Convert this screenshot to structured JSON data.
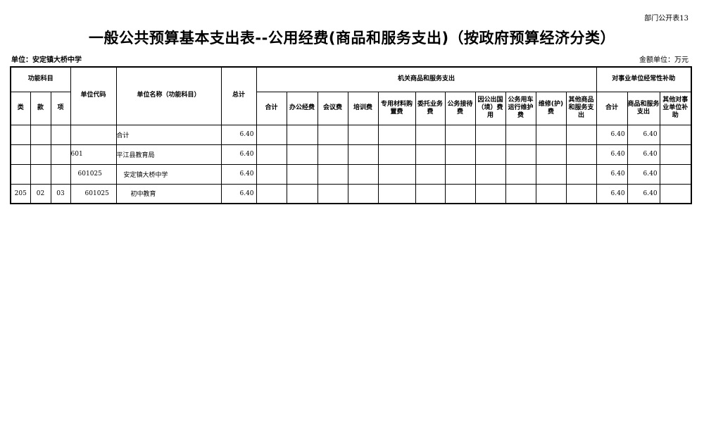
{
  "corner_label": "部门公开表13",
  "title": "一般公共预算基本支出表--公用经费(商品和服务支出)（按政府预算经济分类）",
  "unit_label": "单位：安定镇大桥中学",
  "money_unit": "金额单位：万元",
  "headers": {
    "func": "功能科目",
    "lei": "类",
    "kuan": "款",
    "xiang": "项",
    "code": "单位代码",
    "name": "单位名称（功能科目）",
    "total": "总计",
    "jiguan": "机关商品和服务支出",
    "shiye": "对事业单位经常性补助",
    "jiguan_cols": [
      "合计",
      "办公经费",
      "会议费",
      "培训费",
      "专用材料购置费",
      "委托业务费",
      "公务接待费",
      "因公出国（境）费用",
      "公务用车运行维护费",
      "维修(护)费",
      "其他商品和服务支出"
    ],
    "shiye_cols": [
      "合计",
      "商品和服务支出",
      "其他对事业单位补助"
    ]
  },
  "rows": [
    {
      "lei": "",
      "kuan": "",
      "xiang": "",
      "code": "",
      "name": "合计",
      "total": "6.40",
      "jiguan": [
        "",
        "",
        "",
        "",
        "",
        "",
        "",
        "",
        "",
        "",
        ""
      ],
      "shiye": [
        "6.40",
        "6.40",
        ""
      ]
    },
    {
      "lei": "",
      "kuan": "",
      "xiang": "",
      "code": "601",
      "name": "平江县教育局",
      "total": "6.40",
      "jiguan": [
        "",
        "",
        "",
        "",
        "",
        "",
        "",
        "",
        "",
        "",
        ""
      ],
      "shiye": [
        "6.40",
        "6.40",
        ""
      ]
    },
    {
      "lei": "",
      "kuan": "",
      "xiang": "",
      "code": "601025",
      "name": "安定镇大桥中学",
      "total": "6.40",
      "jiguan": [
        "",
        "",
        "",
        "",
        "",
        "",
        "",
        "",
        "",
        "",
        ""
      ],
      "shiye": [
        "6.40",
        "6.40",
        ""
      ]
    },
    {
      "lei": "205",
      "kuan": "02",
      "xiang": "03",
      "code": "601025",
      "name": "初中教育",
      "total": "6.40",
      "jiguan": [
        "",
        "",
        "",
        "",
        "",
        "",
        "",
        "",
        "",
        "",
        ""
      ],
      "shiye": [
        "6.40",
        "6.40",
        ""
      ]
    }
  ]
}
